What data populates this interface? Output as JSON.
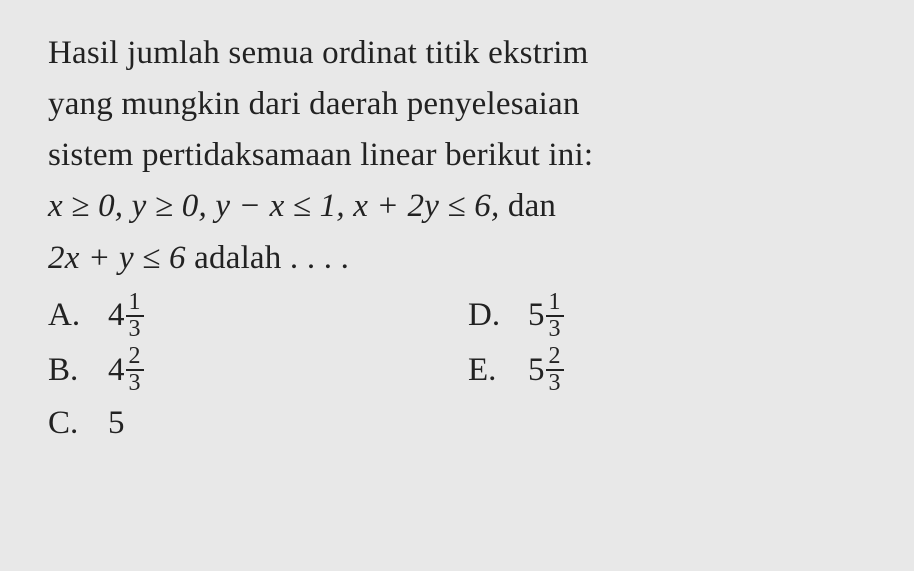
{
  "question": {
    "line1": "Hasil jumlah semua ordinat titik ekstrim",
    "line2": "yang mungkin dari daerah penyelesaian",
    "line3": "sistem pertidaksamaan linear berikut ini:",
    "math_line": "x ≥ 0, y ≥ 0, y − x ≤ 1, x + 2y ≤ 6, dan",
    "line5a": "2x + y ≤ 6",
    "line5b": " adalah . . . ."
  },
  "options": {
    "A": {
      "letter": "A.",
      "whole": "4",
      "num": "1",
      "den": "3"
    },
    "B": {
      "letter": "B.",
      "whole": "4",
      "num": "2",
      "den": "3"
    },
    "C": {
      "letter": "C.",
      "value": "5"
    },
    "D": {
      "letter": "D.",
      "whole": "5",
      "num": "1",
      "den": "3"
    },
    "E": {
      "letter": "E.",
      "whole": "5",
      "num": "2",
      "den": "3"
    }
  },
  "style": {
    "background_color": "#e8e8e8",
    "text_color": "#222222",
    "font_family": "Times New Roman",
    "font_size_pt": 25,
    "fraction_font_size_pt": 18
  }
}
